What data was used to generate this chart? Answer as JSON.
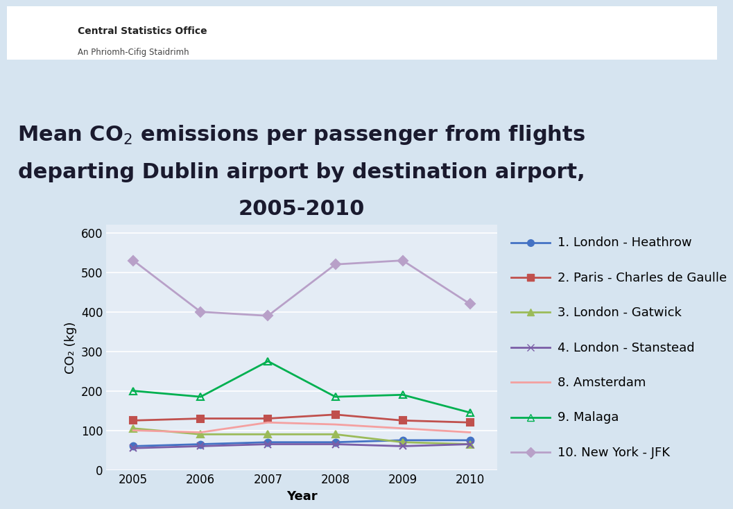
{
  "years": [
    2005,
    2006,
    2007,
    2008,
    2009,
    2010
  ],
  "series": [
    {
      "label": "1. London - Heathrow",
      "values": [
        60,
        65,
        70,
        70,
        75,
        75
      ],
      "color": "#4472C4",
      "marker": "o",
      "markerface": "#4472C4"
    },
    {
      "label": "2. Paris - Charles de Gaulle",
      "values": [
        125,
        130,
        130,
        140,
        125,
        120
      ],
      "color": "#C0504D",
      "marker": "s",
      "markerface": "#C0504D"
    },
    {
      "label": "3. London - Gatwick",
      "values": [
        105,
        90,
        90,
        90,
        70,
        65
      ],
      "color": "#9BBB59",
      "marker": "^",
      "markerface": "#9BBB59"
    },
    {
      "label": "4. London - Stanstead",
      "values": [
        55,
        60,
        65,
        65,
        60,
        65
      ],
      "color": "#7B5EA7",
      "marker": "x",
      "markerface": "#7B5EA7"
    },
    {
      "label": "8. Amsterdam",
      "values": [
        100,
        95,
        120,
        115,
        105,
        95
      ],
      "color": "#F4A0A0",
      "marker": null,
      "markerface": "#F4A0A0"
    },
    {
      "label": "9. Malaga",
      "values": [
        200,
        185,
        275,
        185,
        190,
        145
      ],
      "color": "#00B050",
      "marker": "^",
      "markerface": "none"
    },
    {
      "label": "10. New York - JFK",
      "values": [
        530,
        400,
        390,
        520,
        530,
        420
      ],
      "color": "#B8A0C8",
      "marker": "D",
      "markerface": "#B8A0C8"
    }
  ],
  "xlabel": "Year",
  "ylabel": "CO₂ (kg)",
  "ylim": [
    0,
    620
  ],
  "yticks": [
    0,
    100,
    200,
    300,
    400,
    500,
    600
  ],
  "background_color": "#D6E4F0",
  "plot_bg_color": "#E4ECF5",
  "grid_color": "#FFFFFF",
  "title_fontsize": 22,
  "axis_label_fontsize": 13,
  "tick_fontsize": 12,
  "legend_fontsize": 13,
  "header_org": "Central Statistics Office",
  "header_sub": "An Phriomh-Cifig Staidrimh",
  "title1": "Mean CO$_2$ emissions per passenger from flights",
  "title2": "departing Dublin airport by destination airport,",
  "title3": "2005-2010"
}
